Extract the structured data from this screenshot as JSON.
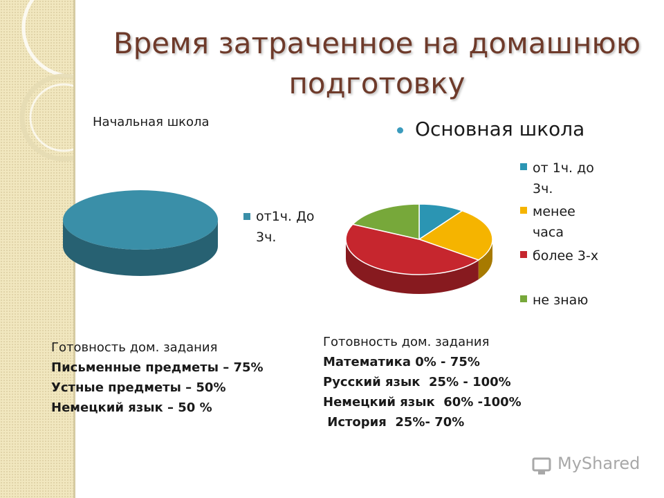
{
  "slide": {
    "title": "Время затраченное на домашнюю подготовку",
    "watermark": "MyShared"
  },
  "chart_data": [
    {
      "type": "pie",
      "title": "Начальная школа",
      "categories": [
        "от1ч. До 3ч."
      ],
      "values": [
        100
      ],
      "colors": [
        "#3a8fa8"
      ],
      "legend": "right"
    },
    {
      "type": "pie",
      "title": "Основная школа",
      "categories": [
        "от 1ч. до 3ч.",
        "менее часа",
        "более 3-х",
        "не знаю"
      ],
      "values": [
        10,
        25,
        47,
        18
      ],
      "colors": [
        "#2b95b3",
        "#f5b400",
        "#c6262e",
        "#77a83a"
      ],
      "legend": "right"
    }
  ],
  "legend_left": {
    "items": [
      {
        "line1": "от1ч. До",
        "line2": "3ч."
      }
    ]
  },
  "legend_right": {
    "items": [
      {
        "line1": "от 1ч. до",
        "line2": "3ч."
      },
      {
        "line1": "менее",
        "line2": "часа"
      },
      {
        "line1": "более 3-х",
        "line2": ""
      },
      {
        "line1": "не знаю",
        "line2": ""
      }
    ]
  },
  "notes_left": {
    "heading": "Готовность дом. задания",
    "lines": [
      "Письменные предметы – 75%",
      "Устные предметы – 50%",
      "Немецкий язык – 50 %"
    ]
  },
  "notes_right": {
    "heading": "Готовность дом. задания",
    "lines": [
      "Математика 0% - 75%",
      "Русский язык  25% - 100%",
      "Немецкий язык  60% -100%",
      " История  25%- 70%"
    ]
  }
}
